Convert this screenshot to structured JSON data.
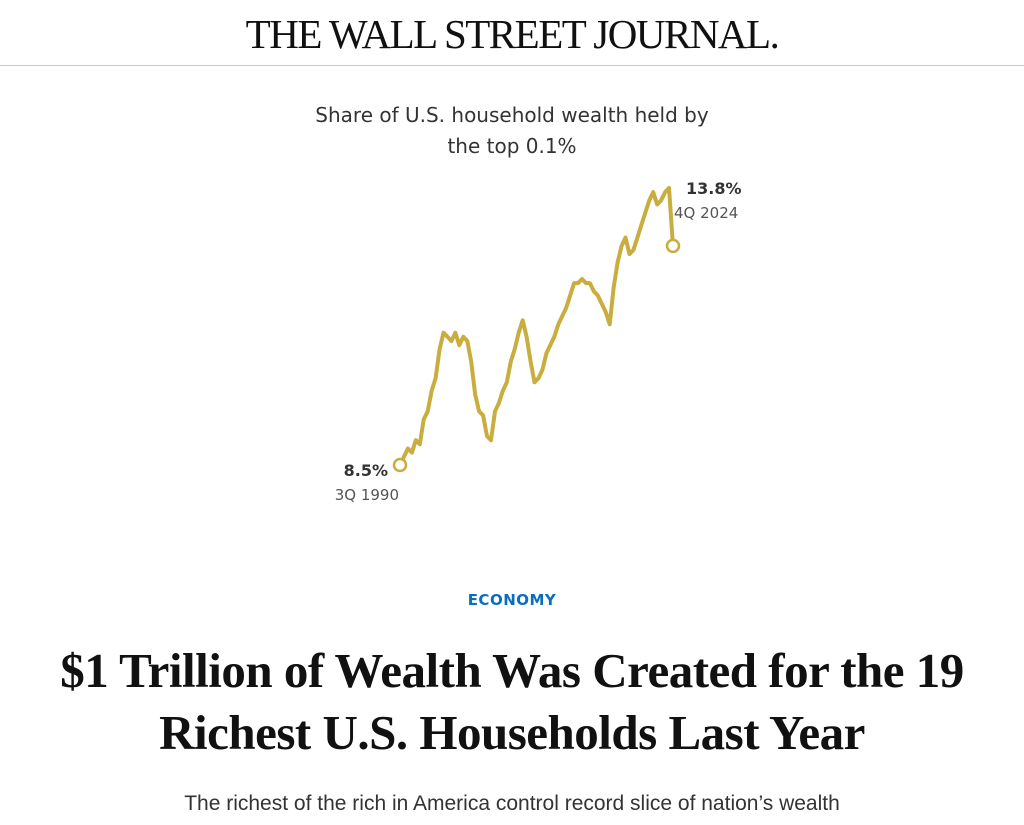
{
  "masthead": {
    "title": "THE WALL STREET JOURNAL."
  },
  "article": {
    "section": "ECONOMY",
    "headline": "$1 Trillion of Wealth Was Created for the 19 Richest U.S. Households Last Year",
    "dek": "The richest of the rich in America control record slice of nation’s wealth"
  },
  "chart_data": {
    "type": "line",
    "title": "Share of U.S. household wealth held by the top 0.1%",
    "xlabel": "",
    "ylabel": "",
    "grid": false,
    "line_color": "#c9ad3e",
    "start_label": {
      "value": "8.5%",
      "date": "3Q 1990"
    },
    "end_label": {
      "value": "13.8%",
      "date": "4Q 2024"
    },
    "x": [
      "1990Q3",
      "1991Q1",
      "1991Q3",
      "1992Q1",
      "1992Q3",
      "1993Q1",
      "1993Q3",
      "1994Q1",
      "1994Q3",
      "1995Q1",
      "1995Q3",
      "1996Q1",
      "1996Q3",
      "1997Q1",
      "1997Q3",
      "1998Q1",
      "1998Q3",
      "1999Q1",
      "1999Q3",
      "2000Q1",
      "2000Q3",
      "2001Q1",
      "2001Q3",
      "2002Q1",
      "2002Q3",
      "2003Q1",
      "2003Q3",
      "2004Q1",
      "2004Q3",
      "2005Q1",
      "2005Q3",
      "2006Q1",
      "2006Q3",
      "2007Q1",
      "2007Q3",
      "2008Q1",
      "2008Q3",
      "2009Q1",
      "2009Q3",
      "2010Q1",
      "2010Q3",
      "2011Q1",
      "2011Q3",
      "2012Q1",
      "2012Q3",
      "2013Q1",
      "2013Q3",
      "2014Q1",
      "2014Q3",
      "2015Q1",
      "2015Q3",
      "2016Q1",
      "2016Q3",
      "2017Q1",
      "2017Q3",
      "2018Q1",
      "2018Q3",
      "2019Q1",
      "2019Q3",
      "2020Q1",
      "2020Q3",
      "2021Q1",
      "2021Q3",
      "2022Q1",
      "2022Q3",
      "2023Q1",
      "2023Q3",
      "2024Q1",
      "2024Q3",
      "2024Q4"
    ],
    "values": [
      8.5,
      8.7,
      8.9,
      8.8,
      9.1,
      9.0,
      9.6,
      9.8,
      10.3,
      10.6,
      11.3,
      11.7,
      11.6,
      11.5,
      11.7,
      11.4,
      11.6,
      11.5,
      11.0,
      10.2,
      9.8,
      9.7,
      9.2,
      9.1,
      9.8,
      10.0,
      10.3,
      10.5,
      11.0,
      11.3,
      11.7,
      12.0,
      11.6,
      11.0,
      10.5,
      10.6,
      10.8,
      11.2,
      11.4,
      11.6,
      11.9,
      12.1,
      12.3,
      12.6,
      12.9,
      12.9,
      13.0,
      12.9,
      12.9,
      12.7,
      12.6,
      12.4,
      12.2,
      11.9,
      12.8,
      13.4,
      13.8,
      14.0,
      13.6,
      13.7,
      14.0,
      14.3,
      14.6,
      14.9,
      15.1,
      14.8,
      14.9,
      15.1,
      15.2,
      13.8
    ]
  }
}
